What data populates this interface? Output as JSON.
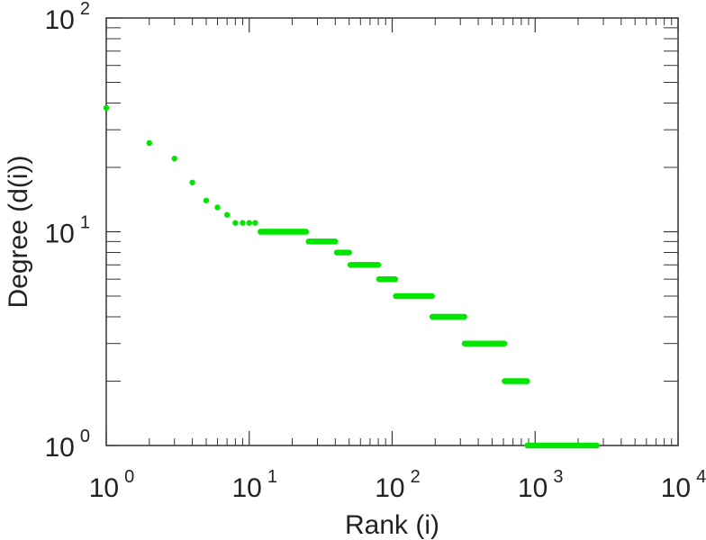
{
  "chart_data": {
    "type": "scatter",
    "title": "",
    "xlabel": "Rank (i)",
    "ylabel": "Degree (d(i))",
    "xscale": "log",
    "yscale": "log",
    "xlim": [
      1,
      10000
    ],
    "ylim": [
      1,
      100
    ],
    "grid": false,
    "legend": "none",
    "marker_color": "#00e600",
    "x_ticks": [
      {
        "value": 1,
        "base": "10",
        "exp": "0"
      },
      {
        "value": 10,
        "base": "10",
        "exp": "1"
      },
      {
        "value": 100,
        "base": "10",
        "exp": "2"
      },
      {
        "value": 1000,
        "base": "10",
        "exp": "3"
      },
      {
        "value": 10000,
        "base": "10",
        "exp": "4"
      }
    ],
    "y_ticks": [
      {
        "value": 1,
        "base": "10",
        "exp": "0"
      },
      {
        "value": 10,
        "base": "10",
        "exp": "1"
      },
      {
        "value": 100,
        "base": "10",
        "exp": "2"
      }
    ],
    "series": [
      {
        "points": [
          [
            1,
            38
          ],
          [
            2,
            26
          ],
          [
            3,
            22
          ],
          [
            4,
            17
          ],
          [
            5,
            14
          ],
          [
            6,
            13
          ],
          [
            7,
            12
          ],
          [
            8,
            11
          ],
          [
            9,
            11
          ],
          [
            10,
            11
          ],
          [
            11,
            11
          ]
        ],
        "plateaus": [
          {
            "y": 10,
            "x_from": 12,
            "x_to": 25
          },
          {
            "y": 9,
            "x_from": 26,
            "x_to": 40
          },
          {
            "y": 8,
            "x_from": 41,
            "x_to": 50
          },
          {
            "y": 7,
            "x_from": 51,
            "x_to": 80
          },
          {
            "y": 6,
            "x_from": 81,
            "x_to": 105
          },
          {
            "y": 5,
            "x_from": 106,
            "x_to": 190
          },
          {
            "y": 4,
            "x_from": 191,
            "x_to": 320
          },
          {
            "y": 3,
            "x_from": 321,
            "x_to": 610
          },
          {
            "y": 2,
            "x_from": 611,
            "x_to": 880
          },
          {
            "y": 1,
            "x_from": 881,
            "x_to": 2700
          }
        ]
      }
    ]
  }
}
